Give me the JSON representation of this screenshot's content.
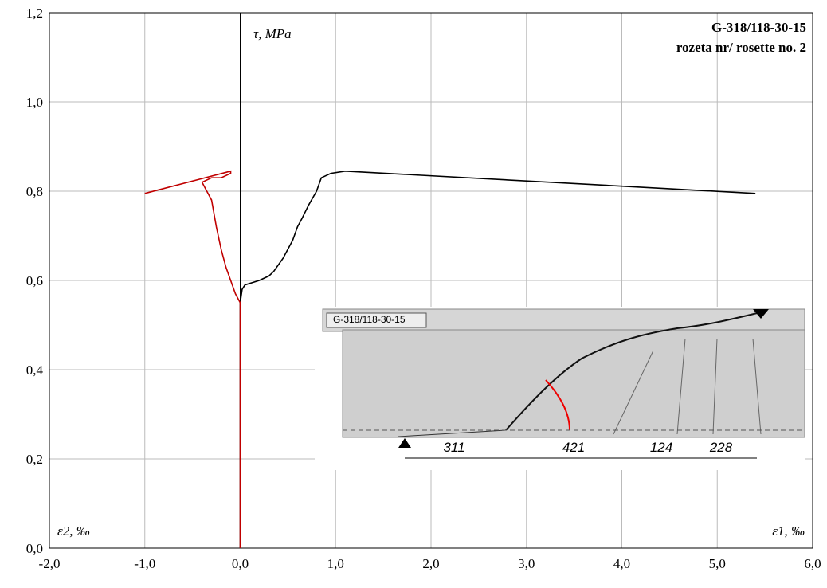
{
  "chart_data": {
    "type": "line",
    "title": [
      "G-318/118-30-15",
      "rozeta nr/ rosette no. 2"
    ],
    "y_label": "τ, MPa",
    "x_label_left": "ε2, ‰",
    "x_label_right": "ε1, ‰",
    "xlim": [
      -2,
      6
    ],
    "ylim": [
      0,
      1.2
    ],
    "xticks": [
      {
        "value": -2,
        "label": "-2,0"
      },
      {
        "value": -1,
        "label": "-1,0"
      },
      {
        "value": 0,
        "label": "0,0"
      },
      {
        "value": 1,
        "label": "1,0"
      },
      {
        "value": 2,
        "label": "2,0"
      },
      {
        "value": 3,
        "label": "3,0"
      },
      {
        "value": 4,
        "label": "4,0"
      },
      {
        "value": 5,
        "label": "5,0"
      },
      {
        "value": 6,
        "label": "6,0"
      }
    ],
    "yticks": [
      {
        "value": 0,
        "label": "0,0"
      },
      {
        "value": 0.2,
        "label": "0,2"
      },
      {
        "value": 0.4,
        "label": "0,4"
      },
      {
        "value": 0.6,
        "label": "0,6"
      },
      {
        "value": 0.8,
        "label": "0,8"
      },
      {
        "value": 1,
        "label": "1,0"
      },
      {
        "value": 1.2,
        "label": "1,2"
      }
    ],
    "grid": true,
    "series": [
      {
        "color": "#000000",
        "x": [
          0,
          0,
          0.02,
          0.05,
          0.2,
          0.3,
          0.35,
          0.45,
          0.5,
          0.55,
          0.6,
          0.65,
          0.72,
          0.8,
          0.85,
          0.95,
          1.1,
          5.4
        ],
        "values": [
          0,
          0.55,
          0.58,
          0.59,
          0.6,
          0.61,
          0.62,
          0.65,
          0.67,
          0.69,
          0.72,
          0.74,
          0.77,
          0.8,
          0.83,
          0.84,
          0.845,
          0.795
        ]
      },
      {
        "color": "#c00000",
        "x": [
          0,
          0,
          -0.05,
          -0.1,
          -0.15,
          -0.2,
          -0.25,
          -0.3,
          -0.35,
          -0.4,
          -0.3,
          -0.2,
          -0.1,
          -0.1,
          -1.0
        ],
        "values": [
          0,
          0.55,
          0.57,
          0.6,
          0.63,
          0.67,
          0.72,
          0.78,
          0.8,
          0.82,
          0.83,
          0.83,
          0.84,
          0.845,
          0.795
        ]
      }
    ]
  },
  "inset": {
    "label": "G-318/118-30-15",
    "dimensions": [
      "311",
      "421",
      "124",
      "228"
    ]
  }
}
